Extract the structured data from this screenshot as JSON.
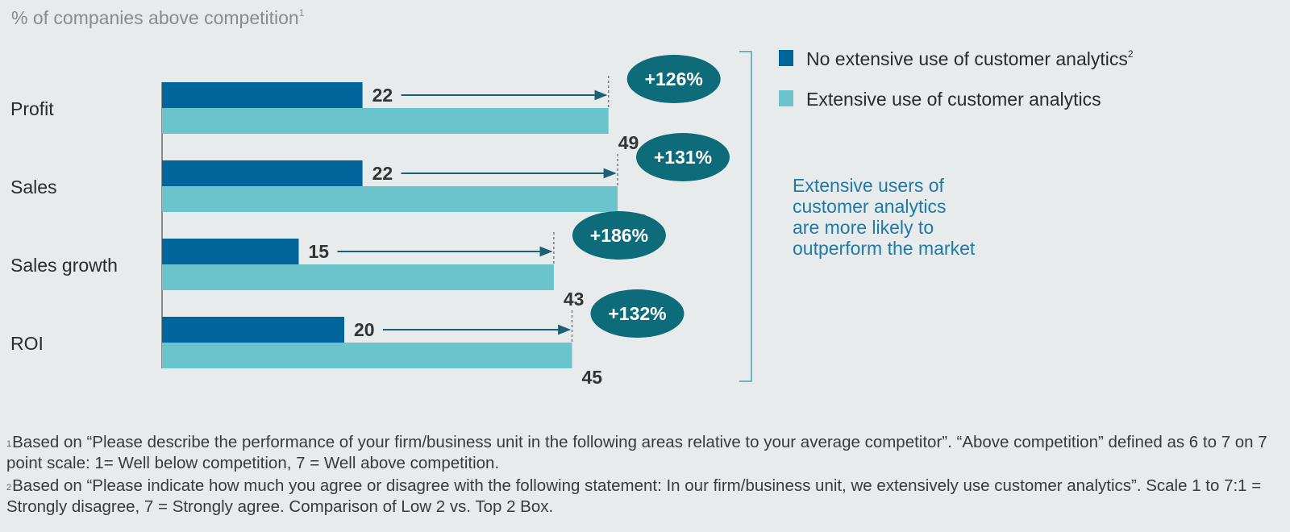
{
  "chart_data": {
    "type": "bar",
    "orientation": "horizontal",
    "title": "% of companies above competition",
    "title_footnote": "1",
    "categories": [
      "Profit",
      "Sales",
      "Sales growth",
      "ROI"
    ],
    "series": [
      {
        "name": "No extensive use of customer analytics",
        "name_footnote": "2",
        "color": "#00659a",
        "values": [
          22,
          22,
          15,
          20
        ]
      },
      {
        "name": "Extensive use of customer analytics",
        "color": "#6bc4cc",
        "values": [
          49,
          50,
          43,
          45
        ]
      }
    ],
    "uplift_labels": [
      "+126%",
      "+131%",
      "+186%",
      "+132%"
    ],
    "uplift_color": "#0e6b7a",
    "xlim": [
      0,
      50
    ],
    "legend_position": "right",
    "grid": false
  },
  "callout": {
    "lines": [
      "Extensive users of",
      "customer analytics",
      "are more likely to",
      "outperform the market"
    ]
  },
  "footnotes": {
    "fn1_marker": "1",
    "fn1_text": "Based on “Please describe the performance of your firm/business unit in the following areas relative to your average competitor”. “Above competition” defined as 6 to 7 on 7 point scale: 1= Well below competition, 7 = Well above competition.",
    "fn2_marker": "2",
    "fn2_text": "Based on “Please indicate how much you agree or disagree with the following statement: In our firm/business unit, we extensively use customer analytics”. Scale 1 to 7:1 = Strongly disagree, 7 = Strongly agree. Comparison of Low 2 vs. Top 2 Box."
  }
}
